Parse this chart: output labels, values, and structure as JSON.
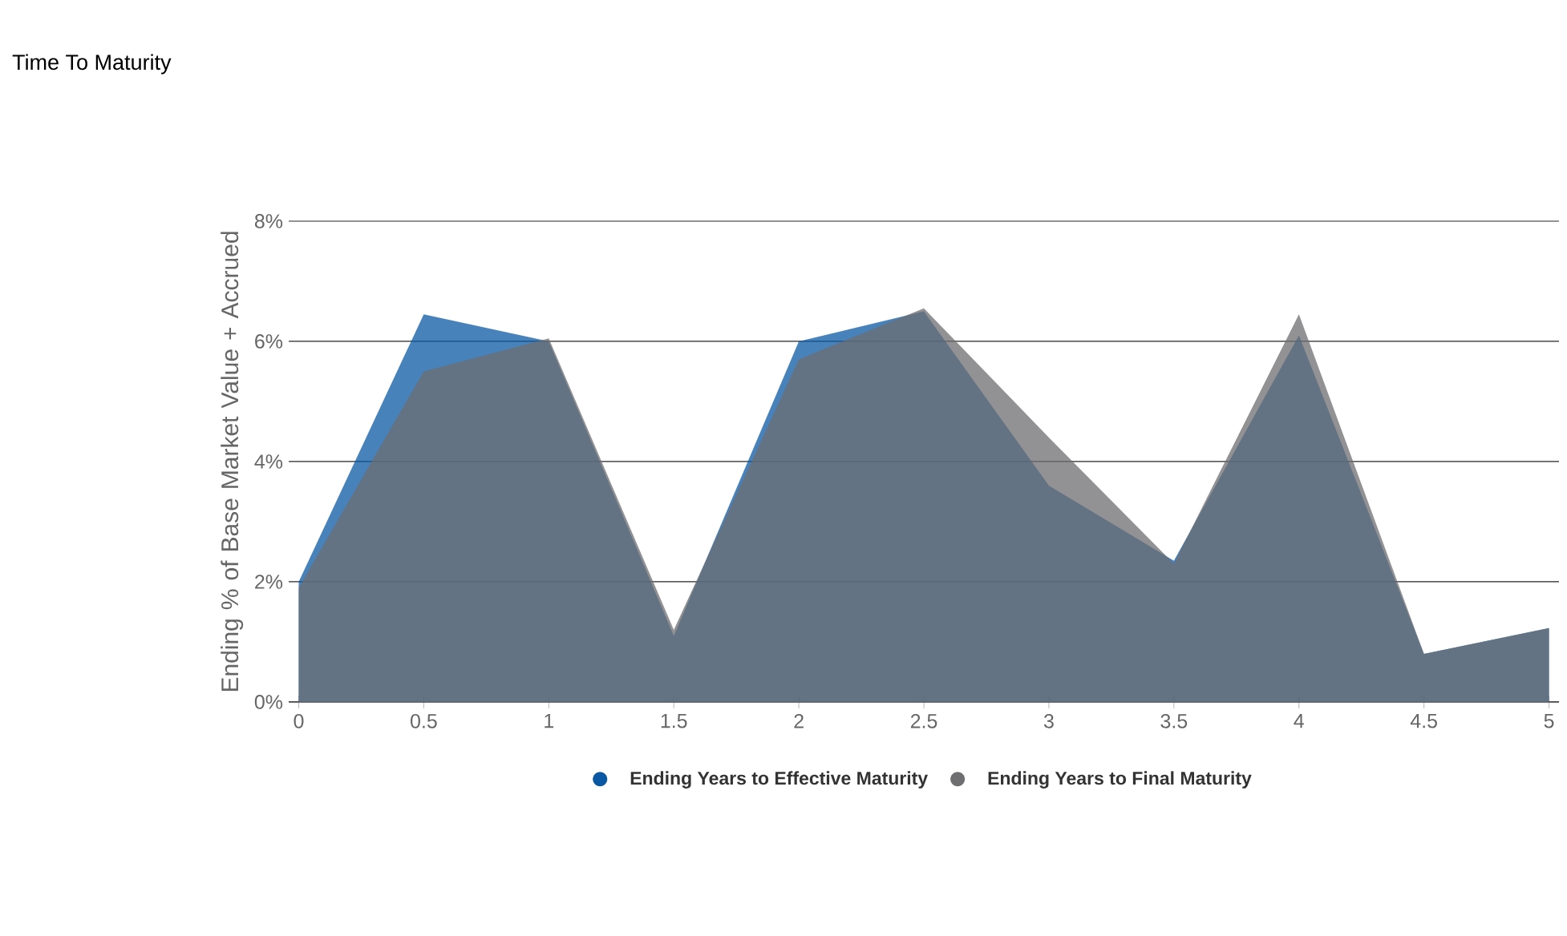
{
  "chart_data": {
    "type": "area",
    "title": "Time To Maturity",
    "ylabel": "Ending % of Base Market Value + Accrued",
    "x": [
      0,
      0.5,
      1,
      1.5,
      2,
      2.5,
      3,
      3.5,
      4,
      4.5,
      5
    ],
    "series": [
      {
        "name": "Ending Years to Effective Maturity",
        "color": "#0a58a4",
        "values": [
          2.0,
          6.45,
          6.0,
          1.1,
          6.0,
          6.5,
          3.6,
          2.35,
          6.1,
          0.8,
          1.23
        ]
      },
      {
        "name": "Ending Years to Final Maturity",
        "color": "#6e6e70",
        "values": [
          1.9,
          5.5,
          6.05,
          1.2,
          5.7,
          6.55,
          4.4,
          2.3,
          6.45,
          0.8,
          1.23
        ]
      }
    ],
    "xlim": [
      -0.04,
      5.04
    ],
    "xticks": [
      0,
      0.5,
      1,
      1.5,
      2,
      2.5,
      3,
      3.5,
      4,
      4.5,
      5
    ],
    "ylim": [
      0,
      8
    ],
    "yticks": [
      {
        "value": 0,
        "label": "0%"
      },
      {
        "value": 2,
        "label": "2%"
      },
      {
        "value": 4,
        "label": "4%"
      },
      {
        "value": 6,
        "label": "6%"
      },
      {
        "value": 8,
        "label": "8%"
      }
    ],
    "grid": "y",
    "legend": "bottom"
  }
}
